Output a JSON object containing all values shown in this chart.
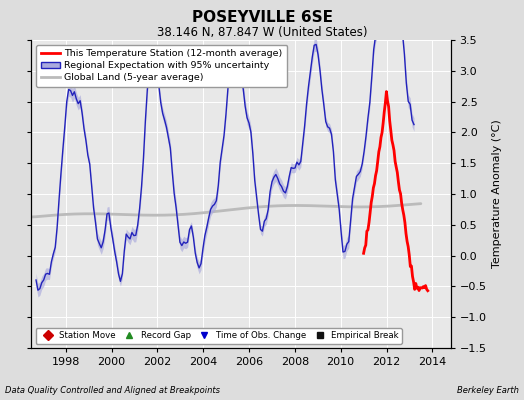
{
  "title": "POSEYVILLE 6SE",
  "subtitle": "38.146 N, 87.847 W (United States)",
  "ylabel": "Temperature Anomaly (°C)",
  "xlabel_bottom_left": "Data Quality Controlled and Aligned at Breakpoints",
  "xlabel_bottom_right": "Berkeley Earth",
  "ylim": [
    -1.5,
    3.5
  ],
  "xlim": [
    1996.5,
    2014.8
  ],
  "xticks": [
    1998,
    2000,
    2002,
    2004,
    2006,
    2008,
    2010,
    2012,
    2014
  ],
  "yticks": [
    -1.5,
    -1.0,
    -0.5,
    0.0,
    0.5,
    1.0,
    1.5,
    2.0,
    2.5,
    3.0,
    3.5
  ],
  "background_color": "#dddddd",
  "plot_bg_color": "#e8e8e8",
  "grid_color": "#ffffff",
  "regional_line_color": "#2222bb",
  "regional_fill_color": "#aaaadd",
  "global_color": "#bbbbbb",
  "station_color": "#ff0000",
  "legend_main": [
    {
      "label": "This Temperature Station (12-month average)",
      "color": "#ff0000",
      "lw": 2.0
    },
    {
      "label": "Regional Expectation with 95% uncertainty",
      "color": "#2222bb",
      "fill": "#aaaadd"
    },
    {
      "label": "Global Land (5-year average)",
      "color": "#bbbbbb",
      "lw": 2.0
    }
  ],
  "legend_bottom": [
    {
      "label": "Station Move",
      "color": "#cc0000",
      "marker": "D"
    },
    {
      "label": "Record Gap",
      "color": "#228B22",
      "marker": "^"
    },
    {
      "label": "Time of Obs. Change",
      "color": "#0000cc",
      "marker": "v"
    },
    {
      "label": "Empirical Break",
      "color": "#111111",
      "marker": "s"
    }
  ]
}
